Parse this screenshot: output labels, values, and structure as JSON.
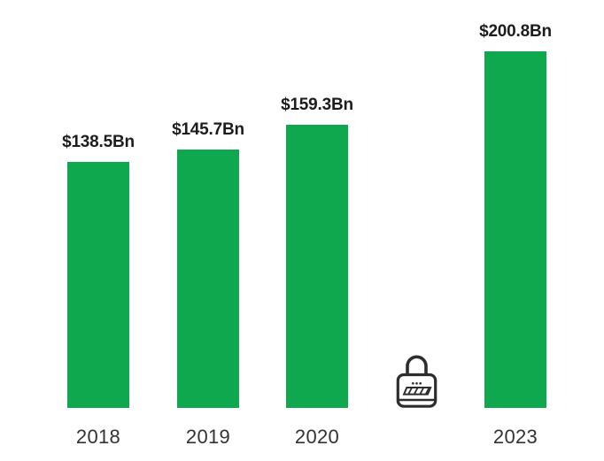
{
  "chart_data": {
    "type": "bar",
    "title": "",
    "xlabel": "",
    "ylabel": "",
    "categories": [
      "2018",
      "2019",
      "2020",
      "",
      "2023"
    ],
    "values": [
      138.5,
      145.7,
      159.3,
      null,
      200.8
    ],
    "value_labels": [
      "$138.5Bn",
      "$145.7Bn",
      "$159.3Bn",
      "",
      "$200.8Bn"
    ],
    "ylim": [
      0,
      210
    ],
    "grid": false,
    "legend": false,
    "background": "#ffffff",
    "bar_color": "#10A84E",
    "label_color": "#1d1d1d",
    "axis_label_color": "#333333",
    "locked_slot": {
      "index": 3,
      "icon": "padlock-icon",
      "icon_color": "#2d2d2d"
    }
  }
}
